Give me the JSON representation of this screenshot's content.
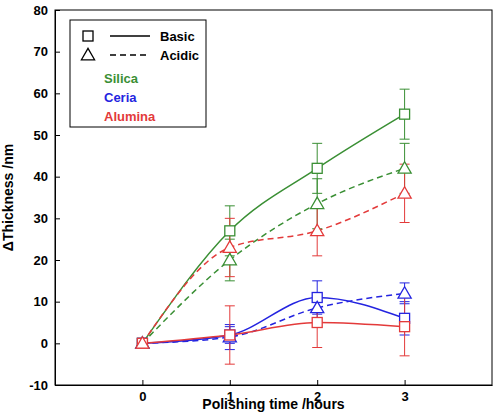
{
  "chart_data": {
    "type": "line",
    "x_label": "Polishing time /hours",
    "y_label": "ΔThickness /nm",
    "x": [
      0,
      1,
      2,
      3
    ],
    "xlim": [
      -1,
      4
    ],
    "xticks": [
      0,
      1,
      2,
      3
    ],
    "ylim": [
      -10,
      80
    ],
    "yticks": [
      -10,
      0,
      10,
      20,
      30,
      40,
      50,
      60,
      70,
      80
    ],
    "legend": "top-left",
    "legend_groups": {
      "styles": [
        {
          "label": "Basic",
          "marker": "square",
          "line_style": "solid"
        },
        {
          "label": "Acidic",
          "marker": "triangle",
          "line_style": "dashed"
        }
      ],
      "colors": [
        {
          "label": "Silica",
          "color": "#3a8f34"
        },
        {
          "label": "Ceria",
          "color": "#2424e0"
        },
        {
          "label": "Alumina",
          "color": "#e33a3a"
        }
      ]
    },
    "series": [
      {
        "material": "Silica",
        "treatment": "Basic",
        "color": "#3a8f34",
        "marker": "square",
        "line_style": "solid",
        "values": [
          0,
          27,
          42,
          55
        ],
        "errors": [
          0,
          6,
          6,
          6
        ]
      },
      {
        "material": "Silica",
        "treatment": "Acidic",
        "color": "#3a8f34",
        "marker": "triangle",
        "line_style": "dashed",
        "values": [
          0,
          20,
          33.5,
          42
        ],
        "errors": [
          0,
          5,
          6,
          6
        ]
      },
      {
        "material": "Ceria",
        "treatment": "Basic",
        "color": "#2424e0",
        "marker": "square",
        "line_style": "solid",
        "values": [
          0,
          2,
          11,
          6
        ],
        "errors": [
          0,
          2,
          4,
          4
        ]
      },
      {
        "material": "Ceria",
        "treatment": "Acidic",
        "color": "#2424e0",
        "marker": "triangle",
        "line_style": "dashed",
        "values": [
          0,
          1.5,
          8.5,
          12
        ],
        "errors": [
          0,
          3,
          3,
          2.5
        ]
      },
      {
        "material": "Alumina",
        "treatment": "Basic",
        "color": "#e33a3a",
        "marker": "square",
        "line_style": "solid",
        "values": [
          0,
          2,
          5,
          4
        ],
        "errors": [
          0,
          7,
          6,
          7
        ]
      },
      {
        "material": "Alumina",
        "treatment": "Acidic",
        "color": "#e33a3a",
        "marker": "triangle",
        "line_style": "dashed",
        "values": [
          0,
          23,
          27,
          36
        ],
        "errors": [
          0,
          7,
          6,
          7
        ]
      }
    ]
  }
}
